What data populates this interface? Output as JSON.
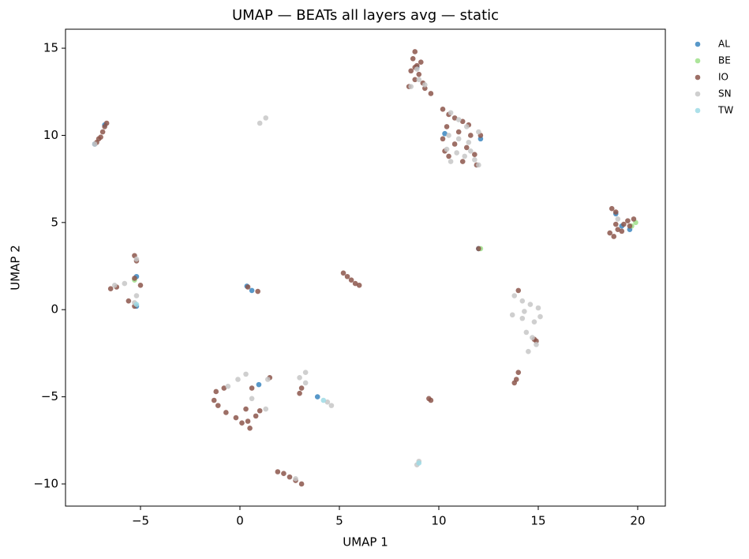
{
  "chart_data": {
    "type": "scatter",
    "title": "UMAP — BEATs all layers avg — static",
    "x_label": "UMAP 1",
    "y_label": "UMAP 2",
    "xlim": [
      -8.77,
      21.39
    ],
    "ylim": [
      -11.27,
      16.09
    ],
    "xticks": [
      {
        "value": -5,
        "label": "−5"
      },
      0,
      5,
      10,
      15,
      20
    ],
    "yticks": [
      {
        "value": -10,
        "label": "−10"
      },
      {
        "value": -5,
        "label": "−5"
      },
      0,
      5,
      10,
      15
    ],
    "grid": false,
    "legend": "outside-upper-right",
    "series": [
      {
        "name": "AL",
        "color": "#3b86bf",
        "x": [
          -7.3,
          -6.8,
          8.9,
          10.3,
          12.1,
          18.9,
          19.2,
          19.6,
          -5.2,
          0.35,
          0.6,
          12,
          0.95,
          3.9,
          -5.2
        ],
        "y": [
          9.5,
          10.6,
          13.9,
          10.1,
          9.8,
          5.5,
          4.8,
          4.6,
          1.9,
          1.35,
          1.1,
          3.5,
          -4.3,
          -5.0,
          0.2
        ]
      },
      {
        "name": "BE",
        "color": "#9fe08a",
        "x": [
          19.9,
          19.7,
          -5.3,
          12.1
        ],
        "y": [
          5.0,
          4.8,
          1.7,
          3.5
        ]
      },
      {
        "name": "IO",
        "color": "#8c564b",
        "x": [
          -7.2,
          -7.0,
          -6.9,
          -6.8,
          -6.7,
          -7.1,
          8.8,
          8.7,
          8.9,
          8.6,
          9.0,
          8.8,
          9.2,
          8.5,
          9.3,
          9.6,
          8.8,
          9.1,
          10.2,
          10.5,
          10.8,
          11.2,
          10.4,
          11.0,
          11.6,
          12.1,
          10.2,
          10.8,
          11.4,
          11.8,
          10.5,
          11.2,
          11.9,
          10.3,
          11.5,
          18.7,
          18.9,
          18.6,
          18.8,
          19.0,
          19.3,
          19.5,
          19.8,
          19.2,
          18.9,
          19.6,
          12,
          -5.3,
          -5.2,
          -6.5,
          -6.2,
          -5.3,
          -5.0,
          -5.6,
          -5.3,
          0.4,
          0.9,
          5.2,
          5.4,
          5.6,
          5.8,
          6.0,
          14,
          14.8,
          14.9,
          14.0,
          13.9,
          13.8,
          -1.2,
          -1.3,
          -1.1,
          -0.8,
          -0.7,
          -0.2,
          0.3,
          0.4,
          0.5,
          0.8,
          1.0,
          0.6,
          1.5,
          0.1,
          3.1,
          3.0,
          9.5,
          9.6,
          1.9,
          2.2,
          2.5,
          2.8,
          3.1
        ],
        "y": [
          9.6,
          9.9,
          10.2,
          10.5,
          10.7,
          9.8,
          14.8,
          14.4,
          14.0,
          13.7,
          13.5,
          13.2,
          13.0,
          12.8,
          12.7,
          12.4,
          13.9,
          14.2,
          11.5,
          11.2,
          11.0,
          10.8,
          10.5,
          10.2,
          10.0,
          10.0,
          9.8,
          9.5,
          9.3,
          8.9,
          8.8,
          8.5,
          8.3,
          9.1,
          10.6,
          5.8,
          5.6,
          4.4,
          4.2,
          4.6,
          4.9,
          5.1,
          5.2,
          4.5,
          4.9,
          4.8,
          3.5,
          3.1,
          2.8,
          1.2,
          1.3,
          1.8,
          1.4,
          0.5,
          0.2,
          1.3,
          1.05,
          2.1,
          1.9,
          1.7,
          1.5,
          1.4,
          1.1,
          -1.7,
          -1.8,
          -3.6,
          -4.0,
          -4.2,
          -4.7,
          -5.2,
          -5.5,
          -4.5,
          -5.9,
          -6.2,
          -5.7,
          -6.4,
          -6.8,
          -6.1,
          -5.8,
          -4.5,
          -3.9,
          -6.5,
          -4.5,
          -4.8,
          -5.1,
          -5.2,
          -9.3,
          -9.4,
          -9.6,
          -9.8,
          -10.0
        ]
      },
      {
        "name": "SN",
        "color": "#c7c7c7",
        "x": [
          -7.3,
          1.0,
          1.3,
          8.6,
          9.0,
          9.3,
          8.9,
          10.6,
          11.0,
          11.4,
          10.5,
          11.0,
          11.5,
          12.0,
          10.4,
          10.9,
          11.3,
          11.8,
          12.0,
          10.6,
          11.6,
          19.0,
          -5.2,
          -6.3,
          -5.8,
          -5.2,
          -5.3,
          13.8,
          14.2,
          14.6,
          15.0,
          13.7,
          14.2,
          14.8,
          15.1,
          14.4,
          14.7,
          14.9,
          14.5,
          14.3,
          -0.1,
          0.3,
          0.6,
          1.3,
          1.4,
          -0.6,
          3.0,
          3.3,
          3.3,
          4.4,
          4.6,
          9.0,
          8.9,
          2.8
        ],
        "y": [
          9.5,
          10.7,
          11.0,
          12.8,
          13.2,
          12.9,
          13.8,
          11.3,
          10.9,
          10.5,
          10.0,
          9.8,
          9.6,
          10.2,
          9.2,
          9.0,
          8.8,
          8.6,
          8.3,
          8.5,
          9.1,
          5.2,
          2.9,
          1.4,
          1.5,
          0.8,
          0.4,
          0.8,
          0.5,
          0.3,
          0.1,
          -0.3,
          -0.5,
          -0.7,
          -0.4,
          -1.3,
          -1.6,
          -2.0,
          -2.4,
          -0.1,
          -4.0,
          -3.7,
          -5.1,
          -5.7,
          -4.0,
          -4.4,
          -3.9,
          -3.6,
          -4.2,
          -5.3,
          -5.5,
          -8.7,
          -8.9,
          -9.7
        ]
      },
      {
        "name": "TW",
        "color": "#9edae5",
        "x": [
          -5.2,
          9.0,
          4.2
        ],
        "y": [
          0.3,
          -8.8,
          -5.2
        ]
      }
    ]
  }
}
